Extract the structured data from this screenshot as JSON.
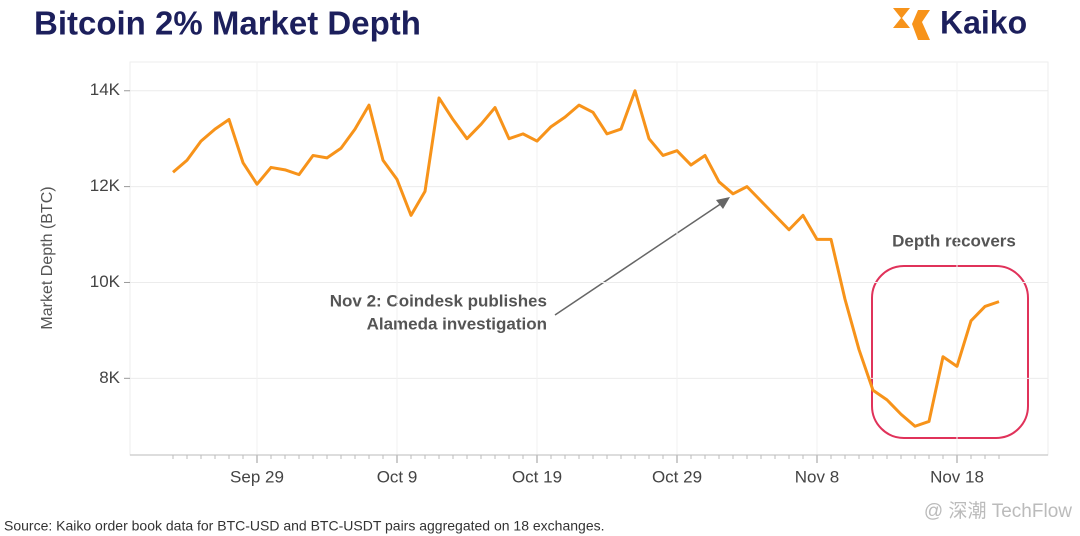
{
  "chart_data": {
    "type": "line",
    "title": "Bitcoin 2% Market Depth",
    "brand": "Kaiko",
    "y_label": "Market Depth (BTC)",
    "source": "Source: Kaiko order book data for BTC-USD and BTC-USDT pairs aggregated on 18 exchanges.",
    "watermark": "@ 深潮 TechFlow",
    "annotations": [
      "Nov 2: Coindesk publishes",
      "Alameda investigation",
      "Depth recovers"
    ],
    "color": "#f7931a",
    "grid": true,
    "x": [
      "Sep 23",
      "Sep 24",
      "Sep 25",
      "Sep 26",
      "Sep 27",
      "Sep 28",
      "Sep 29",
      "Sep 30",
      "Oct 1",
      "Oct 2",
      "Oct 3",
      "Oct 4",
      "Oct 5",
      "Oct 6",
      "Oct 7",
      "Oct 8",
      "Oct 9",
      "Oct 10",
      "Oct 11",
      "Oct 12",
      "Oct 13",
      "Oct 14",
      "Oct 15",
      "Oct 16",
      "Oct 17",
      "Oct 18",
      "Oct 19",
      "Oct 20",
      "Oct 21",
      "Oct 22",
      "Oct 23",
      "Oct 24",
      "Oct 25",
      "Oct 26",
      "Oct 27",
      "Oct 28",
      "Oct 29",
      "Oct 30",
      "Oct 31",
      "Nov 1",
      "Nov 2",
      "Nov 3",
      "Nov 4",
      "Nov 5",
      "Nov 6",
      "Nov 7",
      "Nov 8",
      "Nov 9",
      "Nov 10",
      "Nov 11",
      "Nov 12",
      "Nov 13",
      "Nov 14",
      "Nov 15",
      "Nov 16",
      "Nov 17",
      "Nov 18",
      "Nov 19",
      "Nov 20",
      "Nov 21"
    ],
    "values": [
      12300,
      12550,
      12950,
      13200,
      13400,
      12500,
      12050,
      12400,
      12350,
      12250,
      12650,
      12600,
      12800,
      13200,
      13700,
      12550,
      12150,
      11400,
      11900,
      13850,
      13400,
      13000,
      13300,
      13650,
      13000,
      13100,
      12950,
      13250,
      13450,
      13700,
      13550,
      13100,
      13200,
      14000,
      13000,
      12650,
      12750,
      12450,
      12650,
      12100,
      11850,
      12000,
      11700,
      11400,
      11100,
      11400,
      10900,
      10900,
      9650,
      8600,
      7750,
      7550,
      7250,
      7000,
      7100,
      8450,
      8250,
      9200,
      9500,
      9600
    ],
    "xticks": [
      "Sep 29",
      "Oct 9",
      "Oct 19",
      "Oct 29",
      "Nov 8",
      "Nov 18"
    ],
    "ylim": [
      6400,
      14600
    ],
    "yticks": [
      {
        "value": 8000,
        "label": "8K"
      },
      {
        "value": 10000,
        "label": "10K"
      },
      {
        "value": 12000,
        "label": "12K"
      },
      {
        "value": 14000,
        "label": "14K"
      }
    ]
  }
}
